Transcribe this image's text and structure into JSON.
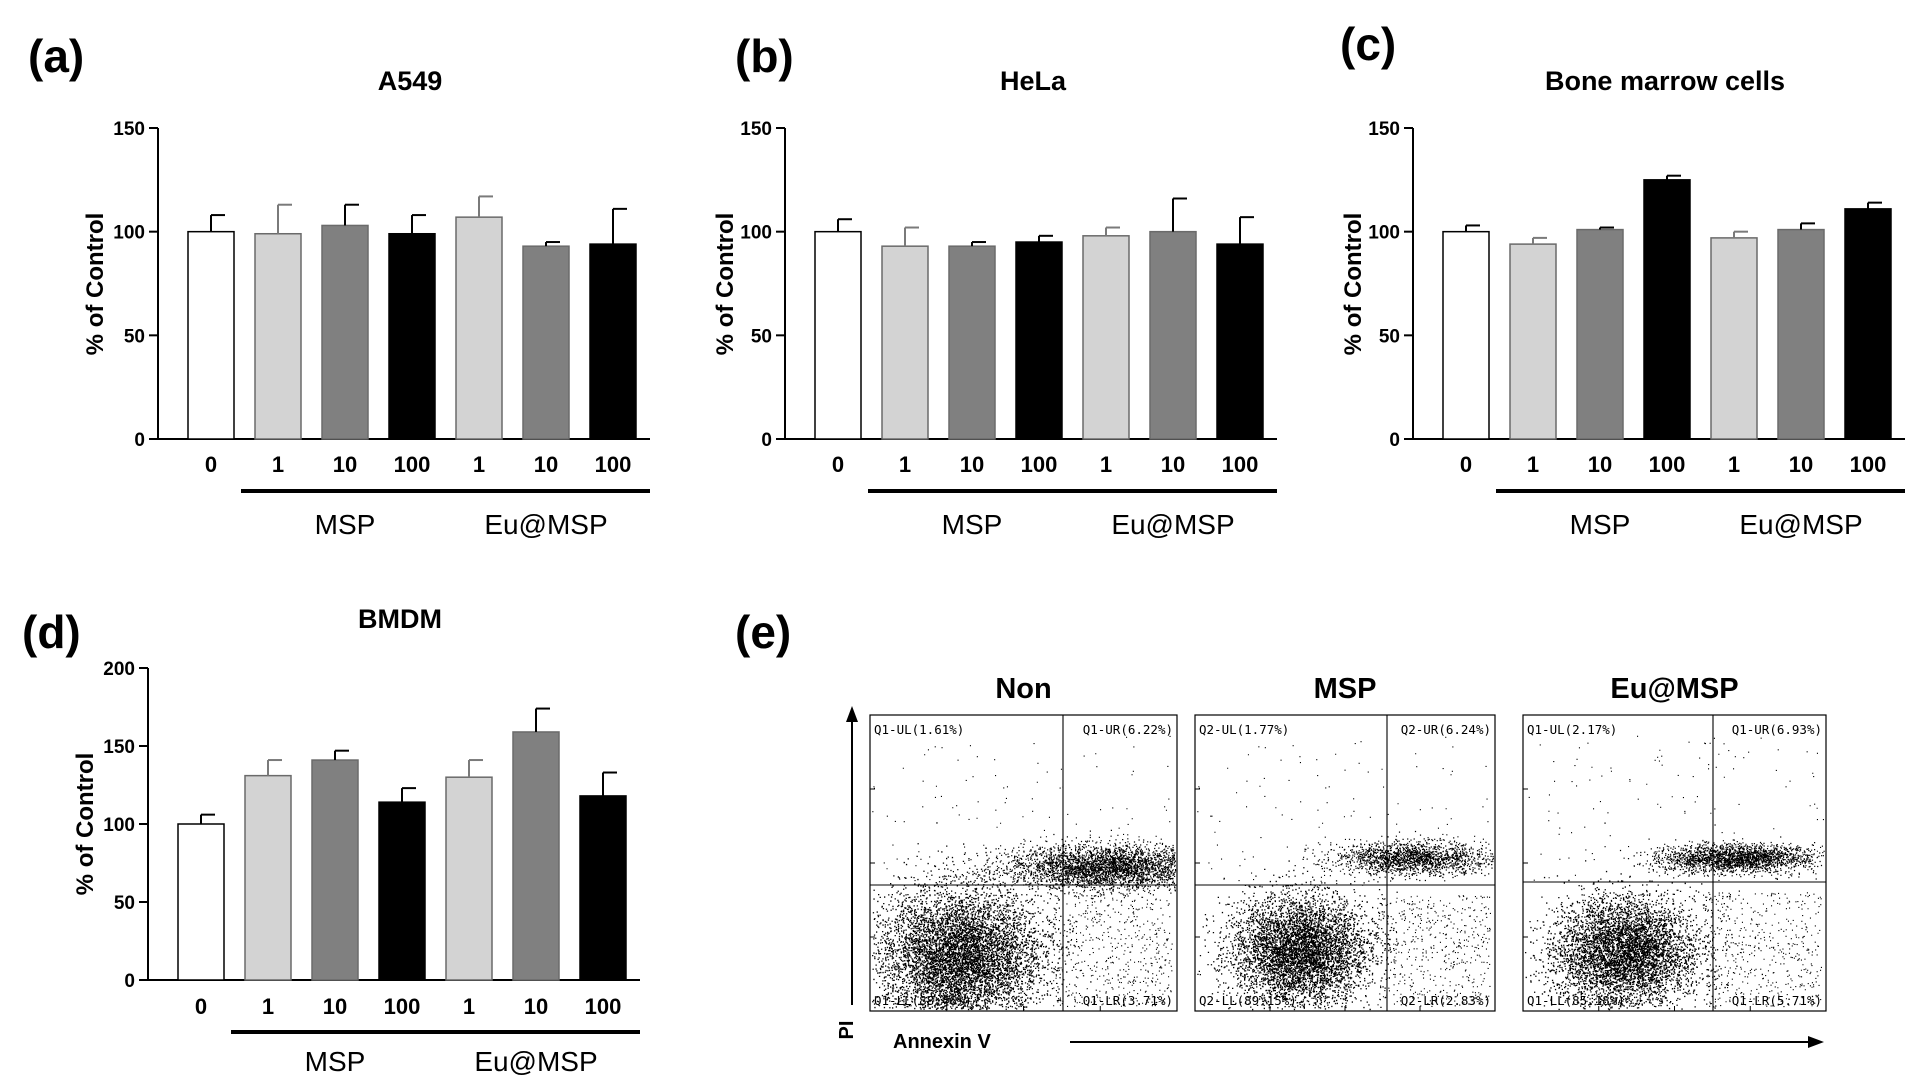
{
  "chart_data": [
    {
      "type": "bar",
      "panel": "(a)",
      "title": "A549",
      "ylabel": "% of Control",
      "ylim": [
        0,
        150
      ],
      "yticks": [
        0,
        50,
        100,
        150
      ],
      "categories": [
        "0",
        "1",
        "10",
        "100",
        "1",
        "10",
        "100"
      ],
      "groups": [
        {
          "label": "MSP",
          "from": 1,
          "to": 3
        },
        {
          "label": "Eu@MSP",
          "from": 4,
          "to": 6
        }
      ],
      "values": [
        100,
        99,
        103,
        99,
        107,
        93,
        94
      ],
      "errors": [
        8,
        14,
        10,
        9,
        10,
        2,
        17
      ],
      "colors": [
        "#ffffff",
        "#d3d3d3",
        "#808080",
        "#000000",
        "#d3d3d3",
        "#808080",
        "#000000"
      ]
    },
    {
      "type": "bar",
      "panel": "(b)",
      "title": "HeLa",
      "ylabel": "% of Control",
      "ylim": [
        0,
        150
      ],
      "yticks": [
        0,
        50,
        100,
        150
      ],
      "categories": [
        "0",
        "1",
        "10",
        "100",
        "1",
        "10",
        "100"
      ],
      "groups": [
        {
          "label": "MSP",
          "from": 1,
          "to": 3
        },
        {
          "label": "Eu@MSP",
          "from": 4,
          "to": 6
        }
      ],
      "values": [
        100,
        93,
        93,
        95,
        98,
        100,
        94
      ],
      "errors": [
        6,
        9,
        2,
        3,
        4,
        16,
        13
      ],
      "colors": [
        "#ffffff",
        "#d3d3d3",
        "#808080",
        "#000000",
        "#d3d3d3",
        "#808080",
        "#000000"
      ]
    },
    {
      "type": "bar",
      "panel": "(c)",
      "title": "Bone marrow cells",
      "ylabel": "% of Control",
      "ylim": [
        0,
        150
      ],
      "yticks": [
        0,
        50,
        100,
        150
      ],
      "categories": [
        "0",
        "1",
        "10",
        "100",
        "1",
        "10",
        "100"
      ],
      "groups": [
        {
          "label": "MSP",
          "from": 1,
          "to": 3
        },
        {
          "label": "Eu@MSP",
          "from": 4,
          "to": 6
        }
      ],
      "values": [
        100,
        94,
        101,
        125,
        97,
        101,
        111
      ],
      "errors": [
        3,
        3,
        1,
        2,
        3,
        3,
        3
      ],
      "colors": [
        "#ffffff",
        "#d3d3d3",
        "#808080",
        "#000000",
        "#d3d3d3",
        "#808080",
        "#000000"
      ]
    },
    {
      "type": "bar",
      "panel": "(d)",
      "title": "BMDM",
      "ylabel": "% of Control",
      "ylim": [
        0,
        200
      ],
      "yticks": [
        0,
        50,
        100,
        150,
        200
      ],
      "categories": [
        "0",
        "1",
        "10",
        "100",
        "1",
        "10",
        "100"
      ],
      "groups": [
        {
          "label": "MSP",
          "from": 1,
          "to": 3
        },
        {
          "label": "Eu@MSP",
          "from": 4,
          "to": 6
        }
      ],
      "values": [
        100,
        131,
        141,
        114,
        130,
        159,
        118
      ],
      "errors": [
        6,
        10,
        6,
        9,
        11,
        15,
        15
      ],
      "colors": [
        "#ffffff",
        "#d3d3d3",
        "#808080",
        "#000000",
        "#d3d3d3",
        "#808080",
        "#000000"
      ]
    },
    {
      "type": "scatter",
      "panel": "(e)",
      "xlabel": "Annexin V",
      "ylabel": "PI",
      "plots": [
        {
          "title": "Non",
          "quadrants": {
            "UL": "Q1-UL(1.61%)",
            "UR": "Q1-UR(6.22%)",
            "LL": "Q1-LL(88.46%)",
            "LR": "Q1-LR(3.71%)"
          }
        },
        {
          "title": "MSP",
          "quadrants": {
            "UL": "Q2-UL(1.77%)",
            "UR": "Q2-UR(6.24%)",
            "LL": "Q2-LL(89.15%)",
            "LR": "Q2-LR(2.83%)"
          }
        },
        {
          "title": "Eu@MSP",
          "quadrants": {
            "UL": "Q1-UL(2.17%)",
            "UR": "Q1-UR(6.93%)",
            "LL": "Q1-LL(85.18%)",
            "LR": "Q1-LR(5.71%)"
          }
        }
      ]
    }
  ]
}
